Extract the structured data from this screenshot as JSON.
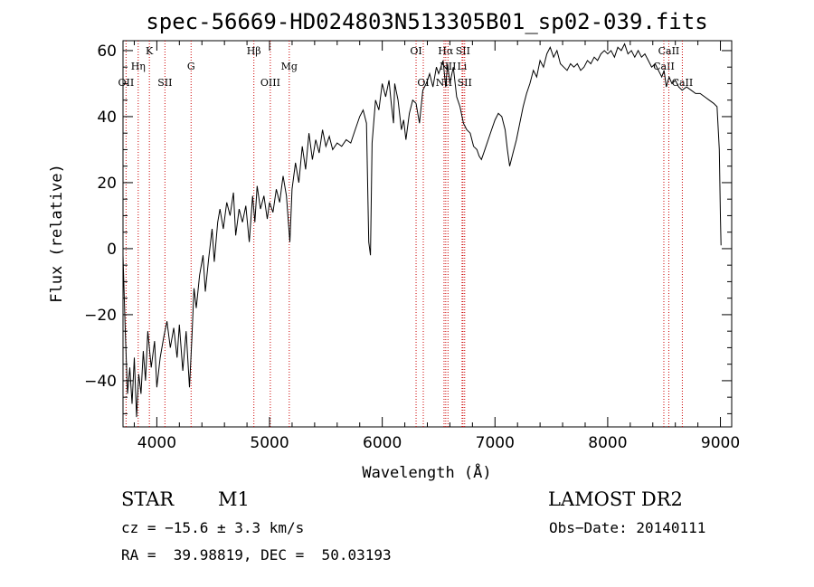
{
  "chart_data": {
    "type": "line",
    "title": "spec-56669-HD024803N513305B01_sp02-039.fits",
    "xlabel": "Wavelength (Å)",
    "ylabel": "Flux (relative)",
    "xlim": [
      3700,
      9100
    ],
    "ylim": [
      -54,
      63
    ],
    "xticks": [
      4000,
      5000,
      6000,
      7000,
      8000,
      9000
    ],
    "xticks_minor_step": 200,
    "yticks": [
      -40,
      -20,
      0,
      20,
      40,
      60
    ],
    "yticks_minor_step": 5,
    "grid": false,
    "line_color": "#000000",
    "marker_color": "#cc0000",
    "series": [
      {
        "points": [
          [
            3700,
            -2
          ],
          [
            3720,
            -25
          ],
          [
            3740,
            -44
          ],
          [
            3760,
            -36
          ],
          [
            3780,
            -47
          ],
          [
            3800,
            -33
          ],
          [
            3820,
            -51
          ],
          [
            3840,
            -38
          ],
          [
            3860,
            -44
          ],
          [
            3880,
            -31
          ],
          [
            3900,
            -40
          ],
          [
            3920,
            -25
          ],
          [
            3950,
            -36
          ],
          [
            3980,
            -28
          ],
          [
            4000,
            -42
          ],
          [
            4030,
            -33
          ],
          [
            4060,
            -27
          ],
          [
            4090,
            -22
          ],
          [
            4120,
            -30
          ],
          [
            4150,
            -24
          ],
          [
            4180,
            -33
          ],
          [
            4200,
            -23
          ],
          [
            4230,
            -37
          ],
          [
            4260,
            -25
          ],
          [
            4290,
            -42
          ],
          [
            4310,
            -28
          ],
          [
            4330,
            -12
          ],
          [
            4350,
            -18
          ],
          [
            4380,
            -8
          ],
          [
            4410,
            -2
          ],
          [
            4430,
            -13
          ],
          [
            4460,
            -3
          ],
          [
            4490,
            6
          ],
          [
            4510,
            -4
          ],
          [
            4540,
            8
          ],
          [
            4560,
            12
          ],
          [
            4590,
            6
          ],
          [
            4620,
            14
          ],
          [
            4650,
            10
          ],
          [
            4680,
            17
          ],
          [
            4700,
            4
          ],
          [
            4730,
            12
          ],
          [
            4760,
            8
          ],
          [
            4790,
            13
          ],
          [
            4820,
            2
          ],
          [
            4850,
            16
          ],
          [
            4870,
            8
          ],
          [
            4890,
            19
          ],
          [
            4920,
            12
          ],
          [
            4950,
            16
          ],
          [
            4980,
            9
          ],
          [
            5000,
            14
          ],
          [
            5030,
            11
          ],
          [
            5060,
            18
          ],
          [
            5090,
            14
          ],
          [
            5120,
            22
          ],
          [
            5150,
            16
          ],
          [
            5180,
            2
          ],
          [
            5200,
            18
          ],
          [
            5230,
            26
          ],
          [
            5260,
            20
          ],
          [
            5290,
            31
          ],
          [
            5320,
            24
          ],
          [
            5350,
            35
          ],
          [
            5380,
            27
          ],
          [
            5410,
            33
          ],
          [
            5440,
            29
          ],
          [
            5470,
            36
          ],
          [
            5500,
            31
          ],
          [
            5530,
            34
          ],
          [
            5560,
            30
          ],
          [
            5600,
            32
          ],
          [
            5640,
            31
          ],
          [
            5680,
            33
          ],
          [
            5720,
            32
          ],
          [
            5760,
            36
          ],
          [
            5800,
            40
          ],
          [
            5830,
            42
          ],
          [
            5860,
            38
          ],
          [
            5880,
            2
          ],
          [
            5895,
            -2
          ],
          [
            5910,
            32
          ],
          [
            5940,
            45
          ],
          [
            5970,
            42
          ],
          [
            6000,
            50
          ],
          [
            6030,
            46
          ],
          [
            6060,
            51
          ],
          [
            6080,
            44
          ],
          [
            6100,
            38
          ],
          [
            6110,
            50
          ],
          [
            6140,
            45
          ],
          [
            6170,
            36
          ],
          [
            6190,
            39
          ],
          [
            6210,
            33
          ],
          [
            6240,
            41
          ],
          [
            6270,
            45
          ],
          [
            6300,
            44
          ],
          [
            6330,
            38
          ],
          [
            6360,
            48
          ],
          [
            6390,
            50
          ],
          [
            6420,
            53
          ],
          [
            6450,
            49
          ],
          [
            6480,
            55
          ],
          [
            6500,
            53
          ],
          [
            6540,
            57
          ],
          [
            6563,
            49
          ],
          [
            6580,
            56
          ],
          [
            6600,
            50
          ],
          [
            6630,
            55
          ],
          [
            6660,
            46
          ],
          [
            6690,
            43
          ],
          [
            6720,
            38
          ],
          [
            6750,
            36
          ],
          [
            6780,
            35
          ],
          [
            6810,
            31
          ],
          [
            6840,
            30
          ],
          [
            6860,
            28
          ],
          [
            6880,
            27
          ],
          [
            6910,
            30
          ],
          [
            6940,
            33
          ],
          [
            6970,
            36
          ],
          [
            7000,
            39
          ],
          [
            7030,
            41
          ],
          [
            7060,
            40
          ],
          [
            7090,
            36
          ],
          [
            7110,
            30
          ],
          [
            7130,
            25
          ],
          [
            7160,
            29
          ],
          [
            7190,
            33
          ],
          [
            7220,
            38
          ],
          [
            7250,
            43
          ],
          [
            7280,
            47
          ],
          [
            7310,
            50
          ],
          [
            7340,
            54
          ],
          [
            7370,
            52
          ],
          [
            7400,
            57
          ],
          [
            7430,
            55
          ],
          [
            7460,
            59
          ],
          [
            7490,
            61
          ],
          [
            7520,
            58
          ],
          [
            7550,
            60
          ],
          [
            7580,
            56
          ],
          [
            7610,
            55
          ],
          [
            7640,
            54
          ],
          [
            7670,
            56
          ],
          [
            7700,
            55
          ],
          [
            7730,
            56
          ],
          [
            7760,
            54
          ],
          [
            7790,
            55
          ],
          [
            7820,
            57
          ],
          [
            7850,
            56
          ],
          [
            7880,
            58
          ],
          [
            7910,
            57
          ],
          [
            7940,
            59
          ],
          [
            7970,
            60
          ],
          [
            8000,
            59
          ],
          [
            8030,
            60
          ],
          [
            8060,
            58
          ],
          [
            8090,
            61
          ],
          [
            8120,
            60
          ],
          [
            8150,
            62
          ],
          [
            8180,
            59
          ],
          [
            8210,
            60
          ],
          [
            8240,
            58
          ],
          [
            8270,
            60
          ],
          [
            8300,
            58
          ],
          [
            8330,
            59
          ],
          [
            8360,
            57
          ],
          [
            8390,
            55
          ],
          [
            8420,
            56
          ],
          [
            8450,
            54
          ],
          [
            8480,
            52
          ],
          [
            8500,
            54
          ],
          [
            8520,
            49
          ],
          [
            8545,
            52
          ],
          [
            8570,
            50
          ],
          [
            8600,
            51
          ],
          [
            8630,
            49
          ],
          [
            8660,
            48
          ],
          [
            8700,
            49
          ],
          [
            8740,
            48
          ],
          [
            8780,
            47
          ],
          [
            8820,
            47
          ],
          [
            8860,
            46
          ],
          [
            8900,
            45
          ],
          [
            8940,
            44
          ],
          [
            8970,
            43
          ],
          [
            8990,
            30
          ],
          [
            9000,
            10
          ],
          [
            9005,
            1
          ]
        ]
      }
    ],
    "lines": [
      {
        "name": "OII",
        "wavelength": 3727,
        "row": 3
      },
      {
        "name": "Hη",
        "wavelength": 3835,
        "row": 2
      },
      {
        "name": "K",
        "wavelength": 3934,
        "row": 1
      },
      {
        "name": "SII",
        "wavelength": 4072,
        "row": 3
      },
      {
        "name": "G",
        "wavelength": 4304,
        "row": 2
      },
      {
        "name": "Hβ",
        "wavelength": 4861,
        "row": 1
      },
      {
        "name": "OIII",
        "wavelength": 5007,
        "row": 3
      },
      {
        "name": "Mg",
        "wavelength": 5175,
        "row": 2
      },
      {
        "name": "OI",
        "wavelength": 6300,
        "row": 1
      },
      {
        "name": "OI",
        "wavelength": 6364,
        "row": 3
      },
      {
        "name": "Hα",
        "wavelength": 6563,
        "row": 1
      },
      {
        "name": "NII",
        "wavelength": 6548,
        "row": 3
      },
      {
        "name": "NII",
        "wavelength": 6583,
        "row": 2
      },
      {
        "name": "Li",
        "wavelength": 6708,
        "row": 2
      },
      {
        "name": "SII",
        "wavelength": 6716,
        "row": 1
      },
      {
        "name": "SII",
        "wavelength": 6731,
        "row": 3
      },
      {
        "name": "CaII",
        "wavelength": 8498,
        "row": 2
      },
      {
        "name": "CaII",
        "wavelength": 8542,
        "row": 1
      },
      {
        "name": "CaII",
        "wavelength": 8662,
        "row": 3
      }
    ]
  },
  "info": {
    "object_class": "STAR",
    "subclass": "M1",
    "survey": "LAMOST DR2",
    "cz": "cz = −15.6 ± 3.3 km/s",
    "obs_date": "Obs−Date: 20140111",
    "coords": "RA =  39.98819, DEC =  50.03193"
  }
}
